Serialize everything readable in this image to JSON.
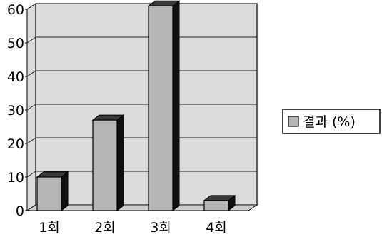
{
  "chart_data": {
    "type": "bar",
    "style": "3d",
    "categories": [
      "1회",
      "2회",
      "3회",
      "4회"
    ],
    "series": [
      {
        "name": "결과 (%)",
        "values": [
          10,
          27,
          61,
          3
        ]
      }
    ],
    "ylim": [
      0,
      60
    ],
    "yticks": [
      "0",
      "10",
      "20",
      "30",
      "40",
      "50",
      "60"
    ],
    "grid": true,
    "legend": "right",
    "colors": {
      "bar": "#b5b5b5",
      "bar_side": "#111111",
      "bar_top": "#3a3a3a",
      "wall": "#dcdcdc",
      "grid": "#222222"
    }
  }
}
